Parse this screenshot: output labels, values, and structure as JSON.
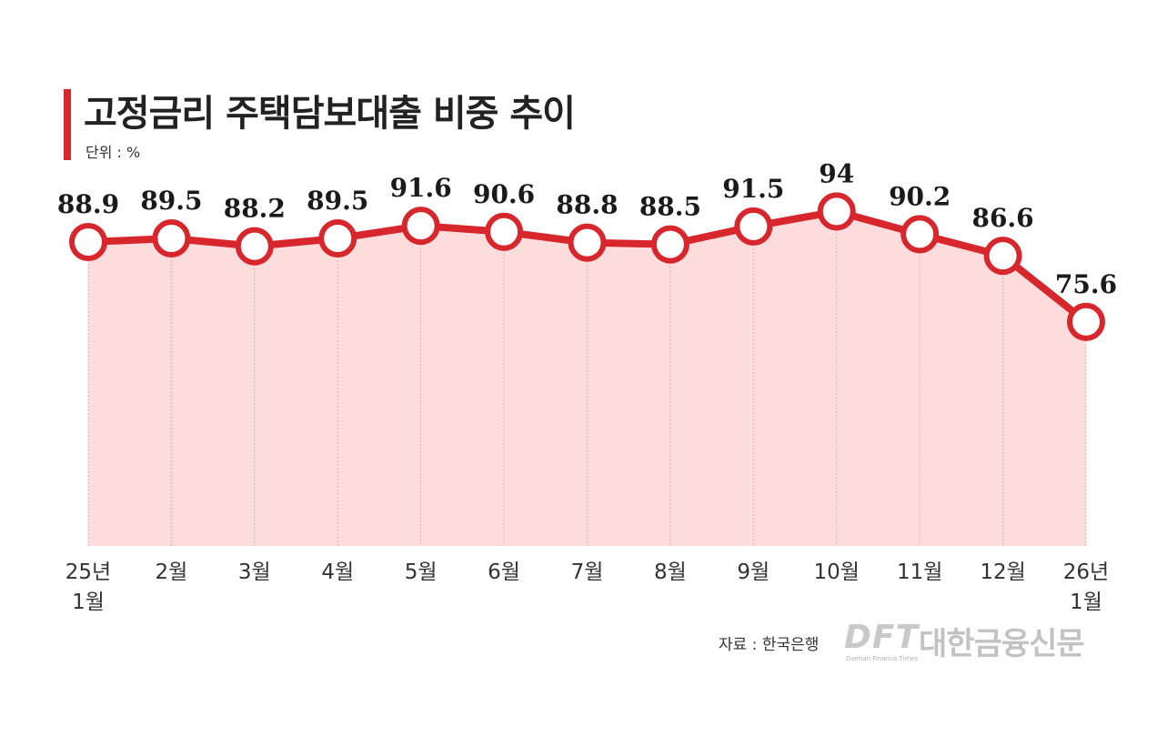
{
  "header": {
    "title": "고정금리 주택담보대출 비중 추이",
    "unit": "단위 : %"
  },
  "footer": {
    "source": "자료 : 한국은행",
    "logo_mark": "DFT",
    "logo_text": "대한금융신문",
    "logo_sub": "Daehan Finance Times"
  },
  "colors": {
    "accent": "#d7272d",
    "fill": "#fcdcdc",
    "text": "#222222"
  },
  "chart_data": {
    "type": "area",
    "categories": [
      "25년\n1월",
      "2월",
      "3월",
      "4월",
      "5월",
      "6월",
      "7월",
      "8월",
      "9월",
      "10월",
      "11월",
      "12월",
      "26년\n1월"
    ],
    "values": [
      88.9,
      89.5,
      88.2,
      89.5,
      91.6,
      90.6,
      88.8,
      88.5,
      91.5,
      94,
      90.2,
      86.6,
      75.6
    ],
    "data_labels": [
      "88.9",
      "89.5",
      "88.2",
      "89.5",
      "91.6",
      "90.6",
      "88.8",
      "88.5",
      "91.5",
      "94",
      "90.2",
      "86.6",
      "75.6"
    ],
    "title": "고정금리 주택담보대출 비중 추이",
    "ylabel": "단위 : %",
    "grid": false,
    "legend": "none"
  }
}
